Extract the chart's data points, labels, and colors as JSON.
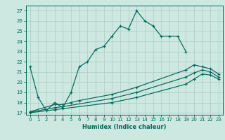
{
  "xlabel": "Humidex (Indice chaleur)",
  "xlim": [
    -0.5,
    23.5
  ],
  "ylim": [
    16.8,
    27.5
  ],
  "xticks": [
    0,
    1,
    2,
    3,
    4,
    5,
    6,
    7,
    8,
    9,
    10,
    11,
    12,
    13,
    14,
    15,
    16,
    17,
    18,
    19,
    20,
    21,
    22,
    23
  ],
  "yticks": [
    17,
    18,
    19,
    20,
    21,
    22,
    23,
    24,
    25,
    26,
    27
  ],
  "bg_color": "#cce8e0",
  "grid_color": "#aaccc4",
  "line_color": "#006858",
  "line1_x": [
    0,
    1,
    2,
    3,
    4,
    5,
    6,
    7,
    8,
    9,
    10,
    11,
    12,
    13,
    14,
    15,
    16,
    17,
    18,
    19
  ],
  "line1_y": [
    21.5,
    18.5,
    17.2,
    18.0,
    17.5,
    19.0,
    21.5,
    22.0,
    23.2,
    23.5,
    24.5,
    25.5,
    25.2,
    27.0,
    26.0,
    25.5,
    24.5,
    24.5,
    24.5,
    23.0
  ],
  "line2_x": [
    0,
    3,
    4,
    5,
    6,
    10,
    13,
    19,
    20,
    21,
    22,
    23
  ],
  "line2_y": [
    17.1,
    17.8,
    17.8,
    18.0,
    18.2,
    18.8,
    19.5,
    21.2,
    21.7,
    21.5,
    21.3,
    20.8
  ],
  "line3_x": [
    0,
    3,
    4,
    10,
    13,
    19,
    20,
    21,
    22,
    23
  ],
  "line3_y": [
    17.05,
    17.5,
    17.6,
    18.4,
    19.0,
    20.5,
    20.9,
    21.2,
    21.0,
    20.5
  ],
  "line4_x": [
    0,
    3,
    4,
    10,
    13,
    19,
    20,
    21,
    22,
    23
  ],
  "line4_y": [
    17.0,
    17.3,
    17.4,
    18.0,
    18.5,
    19.8,
    20.3,
    20.8,
    20.7,
    20.3
  ]
}
